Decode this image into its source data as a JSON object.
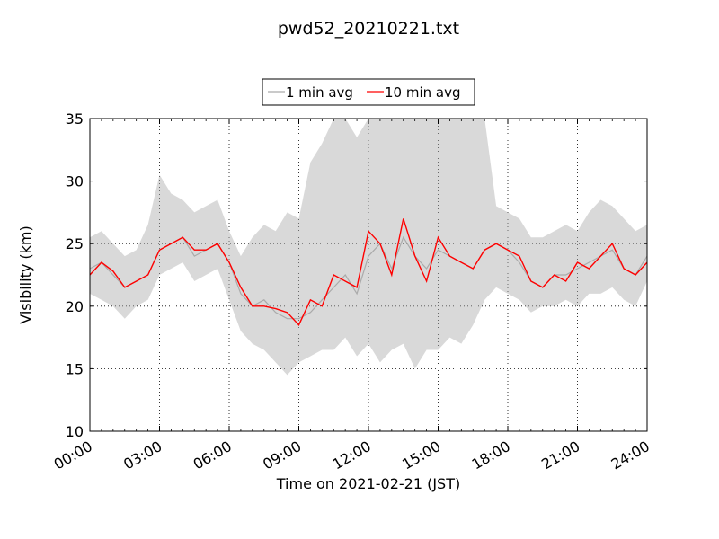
{
  "chart_data": {
    "type": "line",
    "title": "pwd52_20210221.txt",
    "xlabel": "Time on 2021-02-21 (JST)",
    "ylabel": "Visibility (km)",
    "xlim": [
      "00:00",
      "24:00"
    ],
    "ylim": [
      10,
      35
    ],
    "x_ticks": [
      "00:00",
      "03:00",
      "06:00",
      "09:00",
      "12:00",
      "15:00",
      "18:00",
      "21:00",
      "24:00"
    ],
    "y_ticks": [
      "10",
      "15",
      "20",
      "25",
      "30",
      "35"
    ],
    "grid": true,
    "legend_position": "top-center",
    "series": [
      {
        "name": "1 min avg",
        "color": "#aaaaaa",
        "x": [
          "00:00",
          "00:30",
          "01:00",
          "01:30",
          "02:00",
          "02:30",
          "03:00",
          "03:30",
          "04:00",
          "04:30",
          "05:00",
          "05:30",
          "06:00",
          "06:30",
          "07:00",
          "07:30",
          "08:00",
          "08:30",
          "09:00",
          "09:30",
          "10:00",
          "10:30",
          "11:00",
          "11:30",
          "12:00",
          "12:30",
          "13:00",
          "13:30",
          "14:00",
          "14:30",
          "15:00",
          "15:30",
          "16:00",
          "16:30",
          "17:00",
          "17:30",
          "18:00",
          "18:30",
          "19:00",
          "19:30",
          "20:00",
          "20:30",
          "21:00",
          "21:30",
          "22:00",
          "22:30",
          "23:00",
          "23:30",
          "24:00"
        ],
        "y": [
          23.0,
          23.5,
          22.5,
          21.5,
          22.0,
          22.5,
          24.5,
          25.0,
          25.5,
          24.0,
          24.5,
          25.0,
          23.5,
          21.0,
          20.0,
          20.5,
          19.5,
          19.0,
          19.0,
          19.5,
          20.5,
          21.5,
          22.5,
          21.0,
          24.0,
          25.0,
          23.0,
          25.5,
          24.0,
          23.0,
          24.5,
          24.0,
          23.5,
          23.0,
          24.5,
          25.0,
          24.5,
          23.5,
          22.0,
          21.5,
          22.5,
          22.5,
          23.0,
          23.5,
          24.0,
          24.5,
          23.0,
          22.5,
          24.0
        ],
        "y_min": [
          21.0,
          20.5,
          20.0,
          19.0,
          20.0,
          20.5,
          22.5,
          23.0,
          23.5,
          22.0,
          22.5,
          23.0,
          20.5,
          18.0,
          17.0,
          16.5,
          15.5,
          14.5,
          15.5,
          16.0,
          16.5,
          16.5,
          17.5,
          16.0,
          17.0,
          15.5,
          16.5,
          17.0,
          15.0,
          16.5,
          16.5,
          17.5,
          17.0,
          18.5,
          20.5,
          21.5,
          21.0,
          20.5,
          19.5,
          20.0,
          20.0,
          20.5,
          20.0,
          21.0,
          21.0,
          21.5,
          20.5,
          20.0,
          22.0
        ],
        "y_max": [
          25.5,
          26.0,
          25.0,
          24.0,
          24.5,
          26.5,
          30.5,
          29.0,
          28.5,
          27.5,
          28.0,
          28.5,
          26.0,
          24.0,
          25.5,
          26.5,
          26.0,
          27.5,
          27.0,
          31.5,
          33.0,
          35.0,
          35.0,
          33.5,
          35.0,
          35.0,
          35.0,
          35.0,
          35.0,
          35.0,
          35.0,
          35.0,
          35.0,
          35.0,
          35.0,
          28.0,
          27.5,
          27.0,
          25.5,
          25.5,
          26.0,
          26.5,
          26.0,
          27.5,
          28.5,
          28.0,
          27.0,
          26.0,
          26.5
        ]
      },
      {
        "name": "10 min avg",
        "color": "#ff0000",
        "x": [
          "00:00",
          "00:30",
          "01:00",
          "01:30",
          "02:00",
          "02:30",
          "03:00",
          "03:30",
          "04:00",
          "04:30",
          "05:00",
          "05:30",
          "06:00",
          "06:30",
          "07:00",
          "07:30",
          "08:00",
          "08:30",
          "09:00",
          "09:30",
          "10:00",
          "10:30",
          "11:00",
          "11:30",
          "12:00",
          "12:30",
          "13:00",
          "13:30",
          "14:00",
          "14:30",
          "15:00",
          "15:30",
          "16:00",
          "16:30",
          "17:00",
          "17:30",
          "18:00",
          "18:30",
          "19:00",
          "19:30",
          "20:00",
          "20:30",
          "21:00",
          "21:30",
          "22:00",
          "22:30",
          "23:00",
          "23:30",
          "24:00"
        ],
        "y": [
          22.5,
          23.5,
          22.8,
          21.5,
          22.0,
          22.5,
          24.5,
          25.0,
          25.5,
          24.5,
          24.5,
          25.0,
          23.5,
          21.5,
          20.0,
          20.0,
          19.8,
          19.5,
          18.5,
          20.5,
          20.0,
          22.5,
          22.0,
          21.5,
          26.0,
          25.0,
          22.5,
          27.0,
          24.0,
          22.0,
          25.5,
          24.0,
          23.5,
          23.0,
          24.5,
          25.0,
          24.5,
          24.0,
          22.0,
          21.5,
          22.5,
          22.0,
          23.5,
          23.0,
          24.0,
          25.0,
          23.0,
          22.5,
          23.5
        ]
      }
    ]
  }
}
